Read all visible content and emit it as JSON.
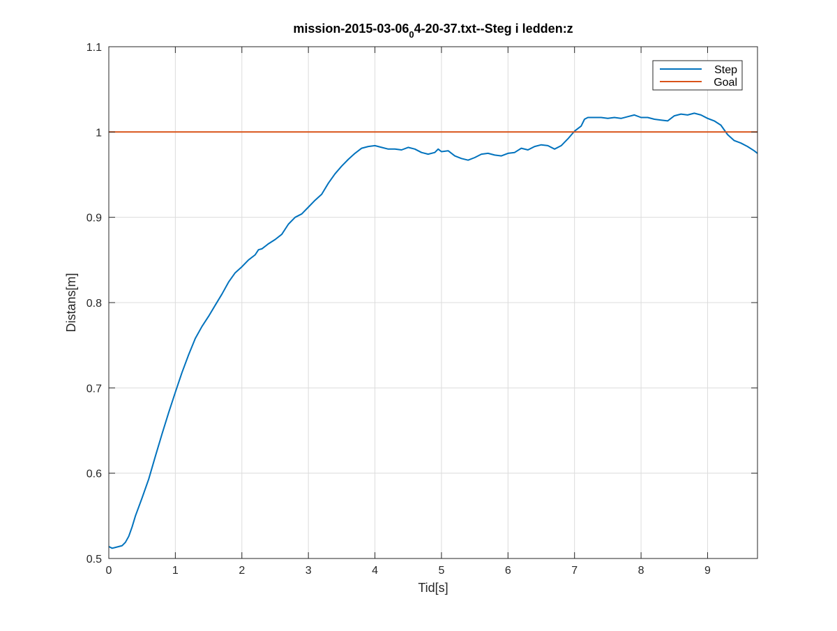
{
  "chart_data": {
    "type": "line",
    "title_parts": {
      "before": "mission-2015-03-06",
      "subscript": "0",
      "after": "4-20-37.txt--Steg i ledden:z"
    },
    "xlabel": "Tid[s]",
    "ylabel": "Distans[m]",
    "xlim": [
      0,
      9.75
    ],
    "ylim": [
      0.5,
      1.1
    ],
    "xticks": [
      0,
      1,
      2,
      3,
      4,
      5,
      6,
      7,
      8,
      9
    ],
    "yticks": [
      0.5,
      0.6,
      0.7,
      0.8,
      0.9,
      1,
      1.1
    ],
    "xtick_labels": [
      "0",
      "1",
      "2",
      "3",
      "4",
      "5",
      "6",
      "7",
      "8",
      "9"
    ],
    "ytick_labels": [
      "0.5",
      "0.6",
      "0.7",
      "0.8",
      "0.9",
      "1",
      "1.1"
    ],
    "grid": true,
    "legend_position": "top-right",
    "series": [
      {
        "name": "Step",
        "color": "#0072BD",
        "points": [
          [
            0.0,
            0.514
          ],
          [
            0.05,
            0.512
          ],
          [
            0.1,
            0.513
          ],
          [
            0.2,
            0.515
          ],
          [
            0.25,
            0.519
          ],
          [
            0.3,
            0.526
          ],
          [
            0.35,
            0.537
          ],
          [
            0.4,
            0.55
          ],
          [
            0.5,
            0.571
          ],
          [
            0.6,
            0.593
          ],
          [
            0.7,
            0.62
          ],
          [
            0.8,
            0.646
          ],
          [
            0.9,
            0.671
          ],
          [
            1.0,
            0.695
          ],
          [
            1.1,
            0.718
          ],
          [
            1.2,
            0.739
          ],
          [
            1.3,
            0.758
          ],
          [
            1.4,
            0.772
          ],
          [
            1.5,
            0.784
          ],
          [
            1.6,
            0.797
          ],
          [
            1.7,
            0.81
          ],
          [
            1.8,
            0.824
          ],
          [
            1.9,
            0.835
          ],
          [
            2.0,
            0.842
          ],
          [
            2.1,
            0.85
          ],
          [
            2.2,
            0.856
          ],
          [
            2.25,
            0.862
          ],
          [
            2.3,
            0.863
          ],
          [
            2.4,
            0.869
          ],
          [
            2.5,
            0.874
          ],
          [
            2.6,
            0.88
          ],
          [
            2.7,
            0.892
          ],
          [
            2.8,
            0.9
          ],
          [
            2.9,
            0.904
          ],
          [
            3.0,
            0.912
          ],
          [
            3.1,
            0.92
          ],
          [
            3.2,
            0.927
          ],
          [
            3.3,
            0.94
          ],
          [
            3.4,
            0.951
          ],
          [
            3.5,
            0.96
          ],
          [
            3.6,
            0.968
          ],
          [
            3.7,
            0.975
          ],
          [
            3.8,
            0.981
          ],
          [
            3.9,
            0.983
          ],
          [
            4.0,
            0.984
          ],
          [
            4.1,
            0.982
          ],
          [
            4.2,
            0.98
          ],
          [
            4.3,
            0.98
          ],
          [
            4.4,
            0.979
          ],
          [
            4.5,
            0.982
          ],
          [
            4.6,
            0.98
          ],
          [
            4.7,
            0.976
          ],
          [
            4.8,
            0.974
          ],
          [
            4.9,
            0.976
          ],
          [
            4.95,
            0.98
          ],
          [
            5.0,
            0.977
          ],
          [
            5.1,
            0.978
          ],
          [
            5.2,
            0.972
          ],
          [
            5.3,
            0.969
          ],
          [
            5.4,
            0.967
          ],
          [
            5.5,
            0.97
          ],
          [
            5.6,
            0.974
          ],
          [
            5.7,
            0.975
          ],
          [
            5.8,
            0.973
          ],
          [
            5.9,
            0.972
          ],
          [
            6.0,
            0.975
          ],
          [
            6.1,
            0.976
          ],
          [
            6.2,
            0.981
          ],
          [
            6.3,
            0.979
          ],
          [
            6.4,
            0.983
          ],
          [
            6.5,
            0.985
          ],
          [
            6.6,
            0.984
          ],
          [
            6.7,
            0.98
          ],
          [
            6.8,
            0.984
          ],
          [
            6.9,
            0.992
          ],
          [
            7.0,
            1.001
          ],
          [
            7.1,
            1.007
          ],
          [
            7.15,
            1.015
          ],
          [
            7.2,
            1.017
          ],
          [
            7.3,
            1.017
          ],
          [
            7.4,
            1.017
          ],
          [
            7.5,
            1.016
          ],
          [
            7.6,
            1.017
          ],
          [
            7.7,
            1.016
          ],
          [
            7.8,
            1.018
          ],
          [
            7.9,
            1.02
          ],
          [
            8.0,
            1.017
          ],
          [
            8.1,
            1.017
          ],
          [
            8.2,
            1.015
          ],
          [
            8.3,
            1.014
          ],
          [
            8.4,
            1.013
          ],
          [
            8.5,
            1.019
          ],
          [
            8.6,
            1.021
          ],
          [
            8.7,
            1.02
          ],
          [
            8.8,
            1.022
          ],
          [
            8.9,
            1.02
          ],
          [
            9.0,
            1.016
          ],
          [
            9.1,
            1.013
          ],
          [
            9.2,
            1.008
          ],
          [
            9.3,
            0.997
          ],
          [
            9.4,
            0.99
          ],
          [
            9.5,
            0.987
          ],
          [
            9.6,
            0.983
          ],
          [
            9.7,
            0.978
          ],
          [
            9.75,
            0.975
          ]
        ]
      },
      {
        "name": "Goal",
        "color": "#D95319",
        "points": [
          [
            0,
            1.0
          ],
          [
            9.75,
            1.0
          ]
        ]
      }
    ]
  }
}
